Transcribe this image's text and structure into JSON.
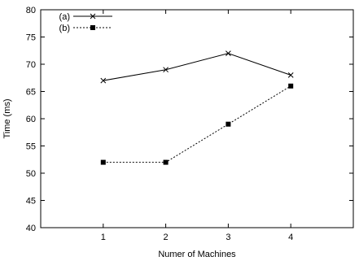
{
  "chart_data": {
    "type": "line",
    "title": "",
    "xlabel": "Numer of Machines",
    "ylabel": "Time (ms)",
    "x_ticks": [
      "1",
      "2",
      "3",
      "4"
    ],
    "xlim": [
      0,
      5
    ],
    "ylim": [
      40,
      80
    ],
    "y_ticks": [
      40,
      45,
      50,
      55,
      60,
      65,
      70,
      75,
      80
    ],
    "grid": false,
    "legend_position": "top-left",
    "series": [
      {
        "name": "(a)",
        "x": [
          1,
          2,
          3,
          4
        ],
        "values": [
          67,
          69,
          72,
          68
        ],
        "marker": "x",
        "line": "solid",
        "color": "#000000"
      },
      {
        "name": "(b)",
        "x": [
          1,
          2,
          3,
          4
        ],
        "values": [
          52,
          52,
          59,
          66
        ],
        "marker": "square",
        "line": "dashed",
        "color": "#000000"
      }
    ]
  }
}
